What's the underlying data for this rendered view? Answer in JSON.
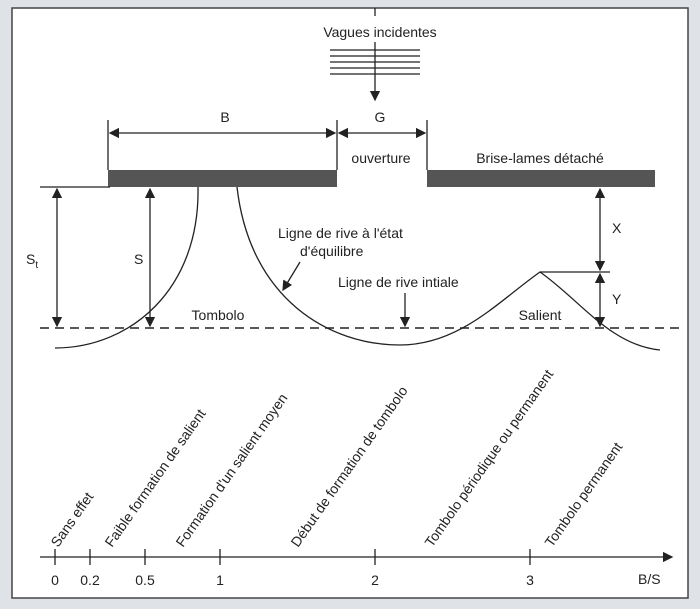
{
  "waves": {
    "label": "Vagues incidentes"
  },
  "dimensions": {
    "B": "B",
    "G": "G",
    "opening": "ouverture",
    "St_main": "S",
    "St_sub": "t",
    "S": "S",
    "X": "X",
    "Y": "Y"
  },
  "labels": {
    "breakwater": "Brise-lames détaché",
    "equilibrium_line_1": "Ligne de rive à l'état",
    "equilibrium_line_2": "d'équilibre",
    "initial_line": "Ligne de rive intiale",
    "tombolo": "Tombolo",
    "salient": "Salient"
  },
  "axis": {
    "label": "B/S",
    "ticks": [
      "0",
      "0.2",
      "0.5",
      "1",
      "2",
      "3"
    ],
    "zones": [
      "Sans effet",
      "Faible formation de salient",
      "Formation d'un salient moyen",
      "Début de formation de tombolo",
      "Tombolo périodique ou permanent",
      "Tombolo permanent"
    ]
  }
}
